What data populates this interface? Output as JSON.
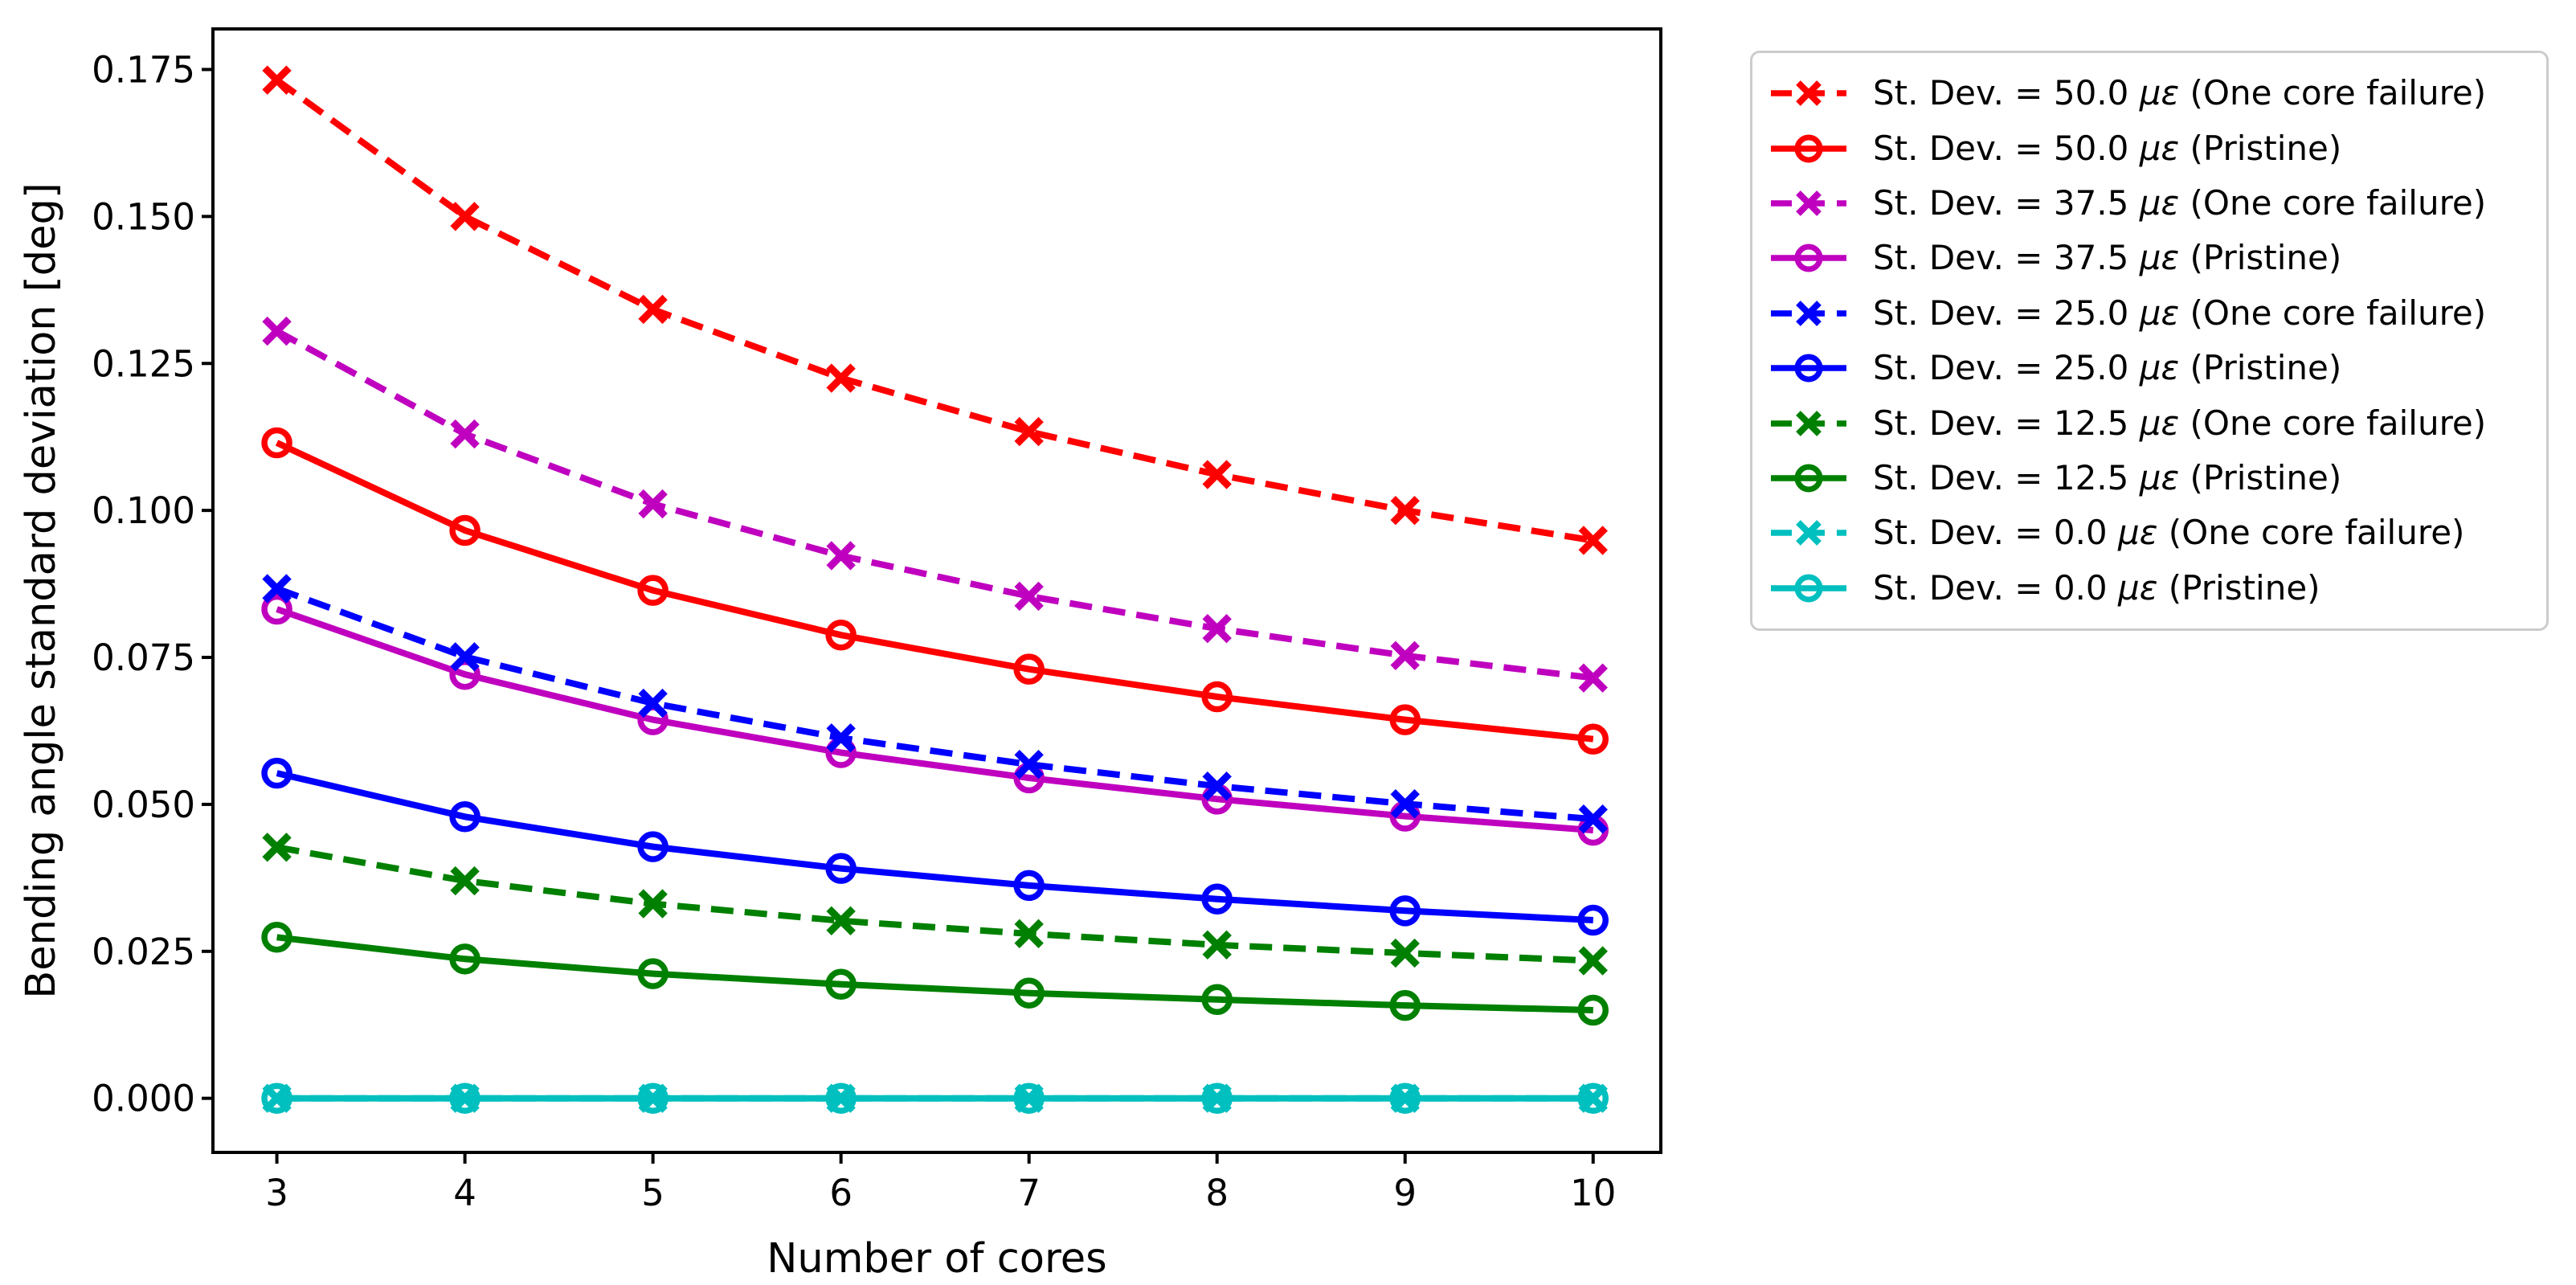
{
  "figure": {
    "background": "#ffffff"
  },
  "chart_data": {
    "type": "line",
    "title": "",
    "xlabel": "Number of cores",
    "ylabel": "Bending angle standard deviation [deg]",
    "x": [
      3,
      4,
      5,
      6,
      7,
      8,
      9,
      10
    ],
    "x_tick_labels": [
      "3",
      "4",
      "5",
      "6",
      "7",
      "8",
      "9",
      "10"
    ],
    "y_tick_values": [
      0.0,
      0.025,
      0.05,
      0.075,
      0.1,
      0.125,
      0.15,
      0.175
    ],
    "y_tick_labels": [
      "0.000",
      "0.025",
      "0.050",
      "0.075",
      "0.100",
      "0.125",
      "0.150",
      "0.175"
    ],
    "xlim": [
      2.66,
      10.36
    ],
    "ylim": [
      -0.0092,
      0.1819
    ],
    "grid": false,
    "legend_position": "outside upper right",
    "axis_color": "#000000",
    "legend_border_color": "#cccccc",
    "series": [
      {
        "label": "St. Dev. = 50.0 με (One core failure)",
        "label_pre": "St. Dev. = 50.0 ",
        "label_mu": "με",
        "label_post": " (One core failure)",
        "color": "#ff0000",
        "line_style": "dashed",
        "marker": "x",
        "values": [
          0.1732,
          0.15,
          0.1342,
          0.1225,
          0.1134,
          0.1061,
          0.1,
          0.0949
        ]
      },
      {
        "label": "St. Dev. = 50.0 με (Pristine)",
        "label_pre": "St. Dev. = 50.0 ",
        "label_mu": "με",
        "label_post": " (Pristine)",
        "color": "#ff0000",
        "line_style": "solid",
        "marker": "o",
        "values": [
          0.1115,
          0.0966,
          0.0864,
          0.0788,
          0.073,
          0.0683,
          0.0644,
          0.0611
        ]
      },
      {
        "label": "St. Dev. = 37.5 με (One core failure)",
        "label_pre": "St. Dev. = 37.5 ",
        "label_mu": "με",
        "label_post": " (One core failure)",
        "color": "#bf00bf",
        "line_style": "dashed",
        "marker": "x",
        "values": [
          0.1305,
          0.113,
          0.1011,
          0.0923,
          0.0854,
          0.0799,
          0.0753,
          0.0715
        ]
      },
      {
        "label": "St. Dev. = 37.5 με (Pristine)",
        "label_pre": "St. Dev. = 37.5 ",
        "label_mu": "με",
        "label_post": " (Pristine)",
        "color": "#bf00bf",
        "line_style": "solid",
        "marker": "o",
        "values": [
          0.0832,
          0.0721,
          0.0644,
          0.0588,
          0.0545,
          0.0509,
          0.048,
          0.0456
        ]
      },
      {
        "label": "St. Dev. = 25.0 με (One core failure)",
        "label_pre": "St. Dev. = 25.0 ",
        "label_mu": "με",
        "label_post": " (One core failure)",
        "color": "#0000ff",
        "line_style": "dashed",
        "marker": "x",
        "values": [
          0.0867,
          0.0751,
          0.0672,
          0.0613,
          0.0568,
          0.0531,
          0.0501,
          0.0475
        ]
      },
      {
        "label": "St. Dev. = 25.0 με (Pristine)",
        "label_pre": "St. Dev. = 25.0 ",
        "label_mu": "με",
        "label_post": " (Pristine)",
        "color": "#0000ff",
        "line_style": "solid",
        "marker": "o",
        "values": [
          0.0553,
          0.0479,
          0.0428,
          0.0391,
          0.0362,
          0.0339,
          0.0319,
          0.0303
        ]
      },
      {
        "label": "St. Dev. = 12.5 με (One core failure)",
        "label_pre": "St. Dev. = 12.5 ",
        "label_mu": "με",
        "label_post": " (One core failure)",
        "color": "#008000",
        "line_style": "dashed",
        "marker": "x",
        "values": [
          0.0427,
          0.037,
          0.0331,
          0.0302,
          0.028,
          0.0261,
          0.0247,
          0.0234
        ]
      },
      {
        "label": "St. Dev. = 12.5 με (Pristine)",
        "label_pre": "St. Dev. = 12.5 ",
        "label_mu": "με",
        "label_post": " (Pristine)",
        "color": "#008000",
        "line_style": "solid",
        "marker": "o",
        "values": [
          0.0274,
          0.0237,
          0.0212,
          0.0194,
          0.0179,
          0.0168,
          0.0158,
          0.015
        ]
      },
      {
        "label": "St. Dev. = 0.0 με (One core failure)",
        "label_pre": "St. Dev. = 0.0 ",
        "label_mu": "με",
        "label_post": " (One core failure)",
        "color": "#00bfbf",
        "line_style": "dashed",
        "marker": "x",
        "values": [
          0.0,
          0.0,
          0.0,
          0.0,
          0.0,
          0.0,
          0.0,
          0.0
        ]
      },
      {
        "label": "St. Dev. = 0.0 με (Pristine)",
        "label_pre": "St. Dev. = 0.0 ",
        "label_mu": "με",
        "label_post": " (Pristine)",
        "color": "#00bfbf",
        "line_style": "solid",
        "marker": "o",
        "values": [
          0.0,
          0.0,
          0.0,
          0.0,
          0.0,
          0.0,
          0.0,
          0.0
        ]
      }
    ]
  }
}
